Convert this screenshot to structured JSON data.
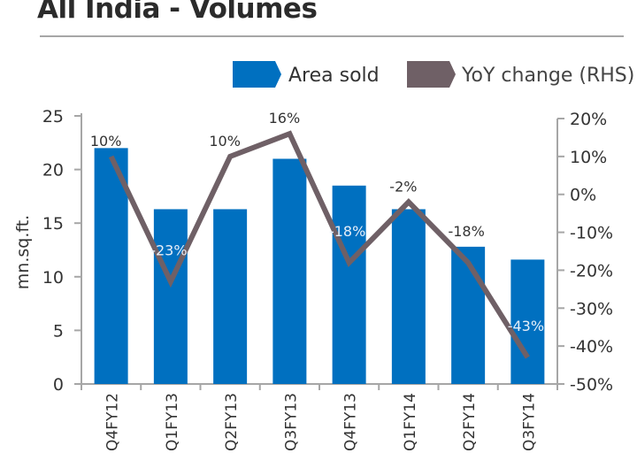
{
  "chart_data": {
    "type": "bar+line",
    "title": "All India - Volumes",
    "categories": [
      "Q4FY12",
      "Q1FY13",
      "Q2FY13",
      "Q3FY13",
      "Q4FY13",
      "Q1FY14",
      "Q2FY14",
      "Q3FY14"
    ],
    "series": [
      {
        "name": "Area sold",
        "type": "bar",
        "axis": "left",
        "color": "#0070c0",
        "values": [
          22.0,
          16.3,
          16.3,
          21.0,
          18.5,
          16.3,
          12.8,
          11.6
        ]
      },
      {
        "name": "YoY change (RHS)",
        "type": "line",
        "axis": "right",
        "color": "#6f6066",
        "values": [
          10,
          -23,
          10,
          16,
          -18,
          -2,
          -18,
          -43
        ],
        "data_labels": [
          "10%",
          "-23%",
          "10%",
          "16%",
          "-18%",
          "-2%",
          "-18%",
          "-43%"
        ]
      }
    ],
    "ylabel": "mn.sq.ft.",
    "ylim": [
      0,
      25
    ],
    "yticks": [
      "0",
      "5",
      "10",
      "15",
      "20",
      "25"
    ],
    "y2lim": [
      -50,
      20
    ],
    "y2ticks": [
      "-50%",
      "-40%",
      "-30%",
      "-20%",
      "-10%",
      "0%",
      "10%",
      "20%"
    ],
    "legend": "top-right",
    "grid": false
  }
}
